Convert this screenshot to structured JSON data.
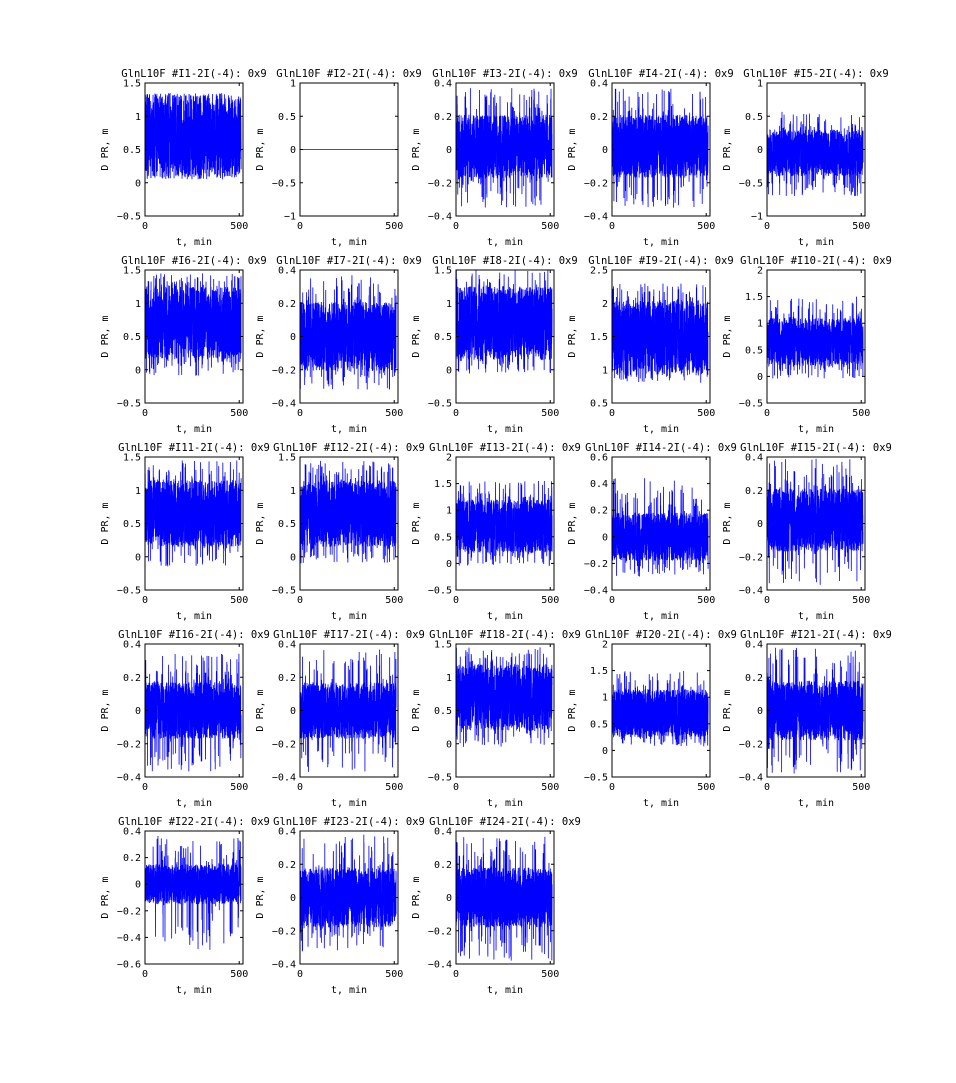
{
  "chart_data": [
    {
      "type": "line",
      "title": "GlnL10F #I1-2I(-4): 0x9",
      "xlabel": "t, min",
      "ylabel": "D PR, m",
      "xlim": [
        0,
        520
      ],
      "ylim": [
        -0.5,
        1.5
      ],
      "xticks": [
        "0",
        "500"
      ],
      "yticks": [
        "−0.5",
        "0",
        "0.5",
        "1",
        "1.5"
      ],
      "series": [
        {
          "color": "#0000ff",
          "center": 0.7,
          "band": 0.6,
          "min": 0.05,
          "max": 1.35
        }
      ]
    },
    {
      "type": "line",
      "title": "GlnL10F #I2-2I(-4): 0x9",
      "xlabel": "t, min",
      "ylabel": "D PR, m",
      "xlim": [
        0,
        520
      ],
      "ylim": [
        -1,
        1
      ],
      "xticks": [
        "0",
        "500"
      ],
      "yticks": [
        "−1",
        "−0.5",
        "0",
        "0.5",
        "1"
      ],
      "series": [
        {
          "color": "#0000ff",
          "center": 0,
          "band": 0,
          "min": 0,
          "max": 0
        }
      ]
    },
    {
      "type": "line",
      "title": "GlnL10F #I3-2I(-4): 0x9",
      "xlabel": "t, min",
      "ylabel": "D PR, m",
      "xlim": [
        0,
        520
      ],
      "ylim": [
        -0.4,
        0.4
      ],
      "xticks": [
        "0",
        "500"
      ],
      "yticks": [
        "−0.4",
        "−0.2",
        "0",
        "0.2",
        "0.4"
      ],
      "series": [
        {
          "color": "#0000ff",
          "center": 0.02,
          "band": 0.19,
          "min": -0.35,
          "max": 0.37
        }
      ]
    },
    {
      "type": "line",
      "title": "GlnL10F #I4-2I(-4): 0x9",
      "xlabel": "t, min",
      "ylabel": "D PR, m",
      "xlim": [
        0,
        520
      ],
      "ylim": [
        -0.4,
        0.4
      ],
      "xticks": [
        "0",
        "500"
      ],
      "yticks": [
        "−0.4",
        "−0.2",
        "0",
        "0.2",
        "0.4"
      ],
      "series": [
        {
          "color": "#0000ff",
          "center": 0.02,
          "band": 0.19,
          "min": -0.35,
          "max": 0.37
        }
      ]
    },
    {
      "type": "line",
      "title": "GlnL10F #I5-2I(-4): 0x9",
      "xlabel": "t, min",
      "ylabel": "D PR, m",
      "xlim": [
        0,
        520
      ],
      "ylim": [
        -1,
        1
      ],
      "xticks": [
        "0",
        "500"
      ],
      "yticks": [
        "−1",
        "−0.5",
        "0",
        "0.5",
        "1"
      ],
      "series": [
        {
          "color": "#0000ff",
          "center": -0.05,
          "band": 0.35,
          "min": -0.7,
          "max": 0.6
        }
      ]
    },
    {
      "type": "line",
      "title": "GlnL10F #I6-2I(-4): 0x9",
      "xlabel": "t, min",
      "ylabel": "D PR, m",
      "xlim": [
        0,
        520
      ],
      "ylim": [
        -0.5,
        1.5
      ],
      "xticks": [
        "0",
        "500"
      ],
      "yticks": [
        "−0.5",
        "0",
        "0.5",
        "1",
        "1.5"
      ],
      "series": [
        {
          "color": "#0000ff",
          "center": 0.7,
          "band": 0.55,
          "min": -0.1,
          "max": 1.45
        }
      ]
    },
    {
      "type": "line",
      "title": "GlnL10F #I7-2I(-4): 0x9",
      "xlabel": "t, min",
      "ylabel": "D PR, m",
      "xlim": [
        0,
        520
      ],
      "ylim": [
        -0.4,
        0.4
      ],
      "xticks": [
        "0",
        "500"
      ],
      "yticks": [
        "−0.4",
        "−0.2",
        "0",
        "0.2",
        "0.4"
      ],
      "series": [
        {
          "color": "#0000ff",
          "center": 0.0,
          "band": 0.21,
          "min": -0.32,
          "max": 0.37
        }
      ]
    },
    {
      "type": "line",
      "title": "GlnL10F #I8-2I(-4): 0x9",
      "xlabel": "t, min",
      "ylabel": "D PR, m",
      "xlim": [
        0,
        520
      ],
      "ylim": [
        -0.5,
        1.5
      ],
      "xticks": [
        "0",
        "500"
      ],
      "yticks": [
        "−0.5",
        "0",
        "0.5",
        "1",
        "1.5"
      ],
      "series": [
        {
          "color": "#0000ff",
          "center": 0.7,
          "band": 0.55,
          "min": -0.05,
          "max": 1.5
        }
      ]
    },
    {
      "type": "line",
      "title": "GlnL10F #I9-2I(-4): 0x9",
      "xlabel": "t, min",
      "ylabel": "D PR, m",
      "xlim": [
        0,
        520
      ],
      "ylim": [
        0.5,
        2.5
      ],
      "xticks": [
        "0",
        "500"
      ],
      "yticks": [
        "0.5",
        "1",
        "1.5",
        "2",
        "2.5"
      ],
      "series": [
        {
          "color": "#0000ff",
          "center": 1.5,
          "band": 0.55,
          "min": 0.8,
          "max": 2.3
        }
      ]
    },
    {
      "type": "line",
      "title": "GlnL10F #I10-2I(-4): 0x9",
      "xlabel": "t, min",
      "ylabel": "D PR, m",
      "xlim": [
        0,
        520
      ],
      "ylim": [
        -0.5,
        2
      ],
      "xticks": [
        "0",
        "500"
      ],
      "yticks": [
        "−0.5",
        "0",
        "0.5",
        "1",
        "1.5",
        "2"
      ],
      "series": [
        {
          "color": "#0000ff",
          "center": 0.65,
          "band": 0.45,
          "min": -0.05,
          "max": 1.5
        }
      ]
    },
    {
      "type": "line",
      "title": "GlnL10F #I11-2I(-4): 0x9",
      "xlabel": "t, min",
      "ylabel": "D PR, m",
      "xlim": [
        0,
        520
      ],
      "ylim": [
        -0.5,
        1.5
      ],
      "xticks": [
        "0",
        "500"
      ],
      "yticks": [
        "−0.5",
        "0",
        "0.5",
        "1",
        "1.5"
      ],
      "series": [
        {
          "color": "#0000ff",
          "center": 0.65,
          "band": 0.5,
          "min": -0.15,
          "max": 1.45
        }
      ]
    },
    {
      "type": "line",
      "title": "GlnL10F #I12-2I(-4): 0x9",
      "xlabel": "t, min",
      "ylabel": "D PR, m",
      "xlim": [
        0,
        520
      ],
      "ylim": [
        -0.5,
        1.5
      ],
      "xticks": [
        "0",
        "500"
      ],
      "yticks": [
        "−0.5",
        "0",
        "0.5",
        "1",
        "1.5"
      ],
      "series": [
        {
          "color": "#0000ff",
          "center": 0.65,
          "band": 0.5,
          "min": -0.1,
          "max": 1.45
        }
      ]
    },
    {
      "type": "line",
      "title": "GlnL10F #I13-2I(-4): 0x9",
      "xlabel": "t, min",
      "ylabel": "D PR, m",
      "xlim": [
        0,
        520
      ],
      "ylim": [
        -0.5,
        2
      ],
      "xticks": [
        "0",
        "500"
      ],
      "yticks": [
        "−0.5",
        "0",
        "0.5",
        "1",
        "1.5",
        "2"
      ],
      "series": [
        {
          "color": "#0000ff",
          "center": 0.7,
          "band": 0.5,
          "min": -0.05,
          "max": 1.55
        }
      ]
    },
    {
      "type": "line",
      "title": "GlnL10F #I14-2I(-4): 0x9",
      "xlabel": "t, min",
      "ylabel": "D PR, m",
      "xlim": [
        0,
        520
      ],
      "ylim": [
        -0.4,
        0.6
      ],
      "xticks": [
        "0",
        "500"
      ],
      "yticks": [
        "−0.4",
        "−0.2",
        "0",
        "0.2",
        "0.4",
        "0.6"
      ],
      "series": [
        {
          "color": "#0000ff",
          "center": 0.0,
          "band": 0.18,
          "min": -0.3,
          "max": 0.45
        }
      ]
    },
    {
      "type": "line",
      "title": "GlnL10F #I15-2I(-4): 0x9",
      "xlabel": "t, min",
      "ylabel": "D PR, m",
      "xlim": [
        0,
        520
      ],
      "ylim": [
        -0.4,
        0.4
      ],
      "xticks": [
        "0",
        "500"
      ],
      "yticks": [
        "−0.4",
        "−0.2",
        "0",
        "0.2",
        "0.4"
      ],
      "series": [
        {
          "color": "#0000ff",
          "center": 0.02,
          "band": 0.19,
          "min": -0.38,
          "max": 0.39
        }
      ]
    },
    {
      "type": "line",
      "title": "GlnL10F #I16-2I(-4): 0x9",
      "xlabel": "t, min",
      "ylabel": "D PR, m",
      "xlim": [
        0,
        520
      ],
      "ylim": [
        -0.4,
        0.4
      ],
      "xticks": [
        "0",
        "500"
      ],
      "yticks": [
        "−0.4",
        "−0.2",
        "0",
        "0.2",
        "0.4"
      ],
      "series": [
        {
          "color": "#0000ff",
          "center": 0.0,
          "band": 0.17,
          "min": -0.37,
          "max": 0.35
        }
      ]
    },
    {
      "type": "line",
      "title": "GlnL10F #I17-2I(-4): 0x9",
      "xlabel": "t, min",
      "ylabel": "D PR, m",
      "xlim": [
        0,
        520
      ],
      "ylim": [
        -0.4,
        0.4
      ],
      "xticks": [
        "0",
        "500"
      ],
      "yticks": [
        "−0.4",
        "−0.2",
        "0",
        "0.2",
        "0.4"
      ],
      "series": [
        {
          "color": "#0000ff",
          "center": 0.0,
          "band": 0.17,
          "min": -0.38,
          "max": 0.37
        }
      ]
    },
    {
      "type": "line",
      "title": "GlnL10F #I18-2I(-4): 0x9",
      "xlabel": "t, min",
      "ylabel": "D PR, m",
      "xlim": [
        0,
        520
      ],
      "ylim": [
        -0.5,
        1.5
      ],
      "xticks": [
        "0",
        "500"
      ],
      "yticks": [
        "−0.5",
        "0",
        "0.5",
        "1",
        "1.5"
      ],
      "series": [
        {
          "color": "#0000ff",
          "center": 0.7,
          "band": 0.5,
          "min": -0.05,
          "max": 1.45
        }
      ]
    },
    {
      "type": "line",
      "title": "GlnL10F #I20-2I(-4): 0x9",
      "xlabel": "t, min",
      "ylabel": "D PR, m",
      "xlim": [
        0,
        520
      ],
      "ylim": [
        -0.5,
        2
      ],
      "xticks": [
        "0",
        "500"
      ],
      "yticks": [
        "−0.5",
        "0",
        "0.5",
        "1",
        "1.5",
        "2"
      ],
      "series": [
        {
          "color": "#0000ff",
          "center": 0.7,
          "band": 0.45,
          "min": 0.05,
          "max": 1.5
        }
      ]
    },
    {
      "type": "line",
      "title": "GlnL10F #I21-2I(-4): 0x9",
      "xlabel": "t, min",
      "ylabel": "D PR, m",
      "xlim": [
        0,
        520
      ],
      "ylim": [
        -0.4,
        0.4
      ],
      "xticks": [
        "0",
        "500"
      ],
      "yticks": [
        "−0.4",
        "−0.2",
        "0",
        "0.2",
        "0.4"
      ],
      "series": [
        {
          "color": "#0000ff",
          "center": 0.0,
          "band": 0.18,
          "min": -0.38,
          "max": 0.38
        }
      ]
    },
    {
      "type": "line",
      "title": "GlnL10F #I22-2I(-4): 0x9",
      "xlabel": "t, min",
      "ylabel": "D PR, m",
      "xlim": [
        0,
        520
      ],
      "ylim": [
        -0.6,
        0.4
      ],
      "xticks": [
        "0",
        "500"
      ],
      "yticks": [
        "−0.6",
        "−0.4",
        "−0.2",
        "0",
        "0.2",
        "0.4"
      ],
      "series": [
        {
          "color": "#0000ff",
          "center": 0.0,
          "band": 0.15,
          "min": -0.5,
          "max": 0.38
        }
      ]
    },
    {
      "type": "line",
      "title": "GlnL10F #I23-2I(-4): 0x9",
      "xlabel": "t, min",
      "ylabel": "D PR, m",
      "xlim": [
        0,
        520
      ],
      "ylim": [
        -0.4,
        0.4
      ],
      "xticks": [
        "0",
        "500"
      ],
      "yticks": [
        "−0.4",
        "−0.2",
        "0",
        "0.2",
        "0.4"
      ],
      "series": [
        {
          "color": "#0000ff",
          "center": 0.0,
          "band": 0.18,
          "min": -0.33,
          "max": 0.38
        }
      ]
    },
    {
      "type": "line",
      "title": "GlnL10F #I24-2I(-4): 0x9",
      "xlabel": "t, min",
      "ylabel": "D PR, m",
      "xlim": [
        0,
        520
      ],
      "ylim": [
        -0.4,
        0.4
      ],
      "xticks": [
        "0",
        "500"
      ],
      "yticks": [
        "−0.4",
        "−0.2",
        "0",
        "0.2",
        "0.4"
      ],
      "series": [
        {
          "color": "#0000ff",
          "center": 0.0,
          "band": 0.18,
          "min": -0.38,
          "max": 0.37
        }
      ]
    }
  ]
}
